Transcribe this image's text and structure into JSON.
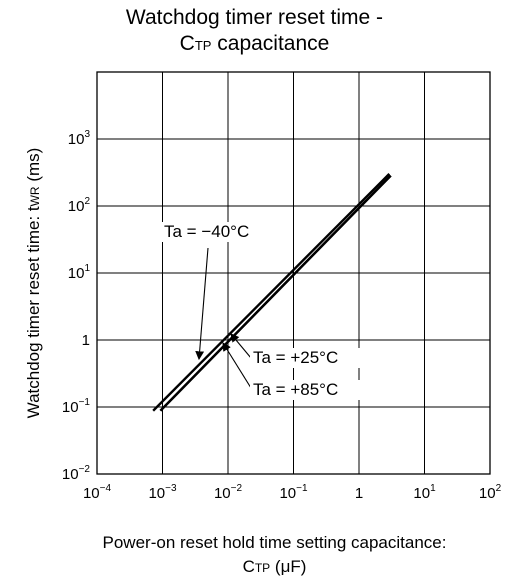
{
  "chart_data": {
    "type": "line",
    "title": {
      "line1": "Watchdog timer reset time -",
      "line2_main": "C",
      "line2_sub": "TP",
      "line2_rest": " capacitance"
    },
    "ylabel": {
      "main": "Watchdog timer reset time: t",
      "sub": "WR",
      "rest": " (ms)"
    },
    "xlabel": {
      "line1": "Power-on reset hold time setting capacitance:",
      "line2_main": "C",
      "line2_sub": "TP",
      "line2_rest": " (μF)"
    },
    "x_scale": "log",
    "y_scale": "log",
    "xlim": [
      0.0001,
      100
    ],
    "ylim": [
      0.01,
      10000
    ],
    "grid": true,
    "x_ticks": [
      {
        "value": 0.0001,
        "base": "10",
        "exp": "−4"
      },
      {
        "value": 0.001,
        "base": "10",
        "exp": "−3"
      },
      {
        "value": 0.01,
        "base": "10",
        "exp": "−2"
      },
      {
        "value": 0.1,
        "base": "10",
        "exp": "−1"
      },
      {
        "value": 1,
        "base": "1",
        "exp": ""
      },
      {
        "value": 10,
        "base": "10",
        "exp": "1"
      },
      {
        "value": 100,
        "base": "10",
        "exp": "2"
      }
    ],
    "y_ticks": [
      {
        "value": 0.01,
        "base": "10",
        "exp": "−2"
      },
      {
        "value": 0.1,
        "base": "10",
        "exp": "−1"
      },
      {
        "value": 1,
        "base": "1",
        "exp": ""
      },
      {
        "value": 10,
        "base": "10",
        "exp": "1"
      },
      {
        "value": 100,
        "base": "10",
        "exp": "2"
      },
      {
        "value": 1000,
        "base": "10",
        "exp": "3"
      }
    ],
    "series": [
      {
        "name": "Ta = −40°C",
        "points": [
          [
            0.00072,
            0.088
          ],
          [
            2.9,
            302
          ]
        ]
      },
      {
        "name": "Ta = +25°C",
        "points": [
          [
            0.00093,
            0.088
          ],
          [
            3.05,
            284
          ]
        ]
      },
      {
        "name": "Ta = +85°C",
        "points": [
          [
            0.00093,
            0.088
          ],
          [
            3.05,
            284
          ]
        ]
      }
    ],
    "annotations": [
      {
        "text": "Ta = −40°C",
        "series": 0,
        "pos": "upper-left"
      },
      {
        "text": "Ta = +25°C",
        "series": 1,
        "pos": "lower-right"
      },
      {
        "text": "Ta = +85°C",
        "series": 2,
        "pos": "lower-right"
      }
    ]
  }
}
